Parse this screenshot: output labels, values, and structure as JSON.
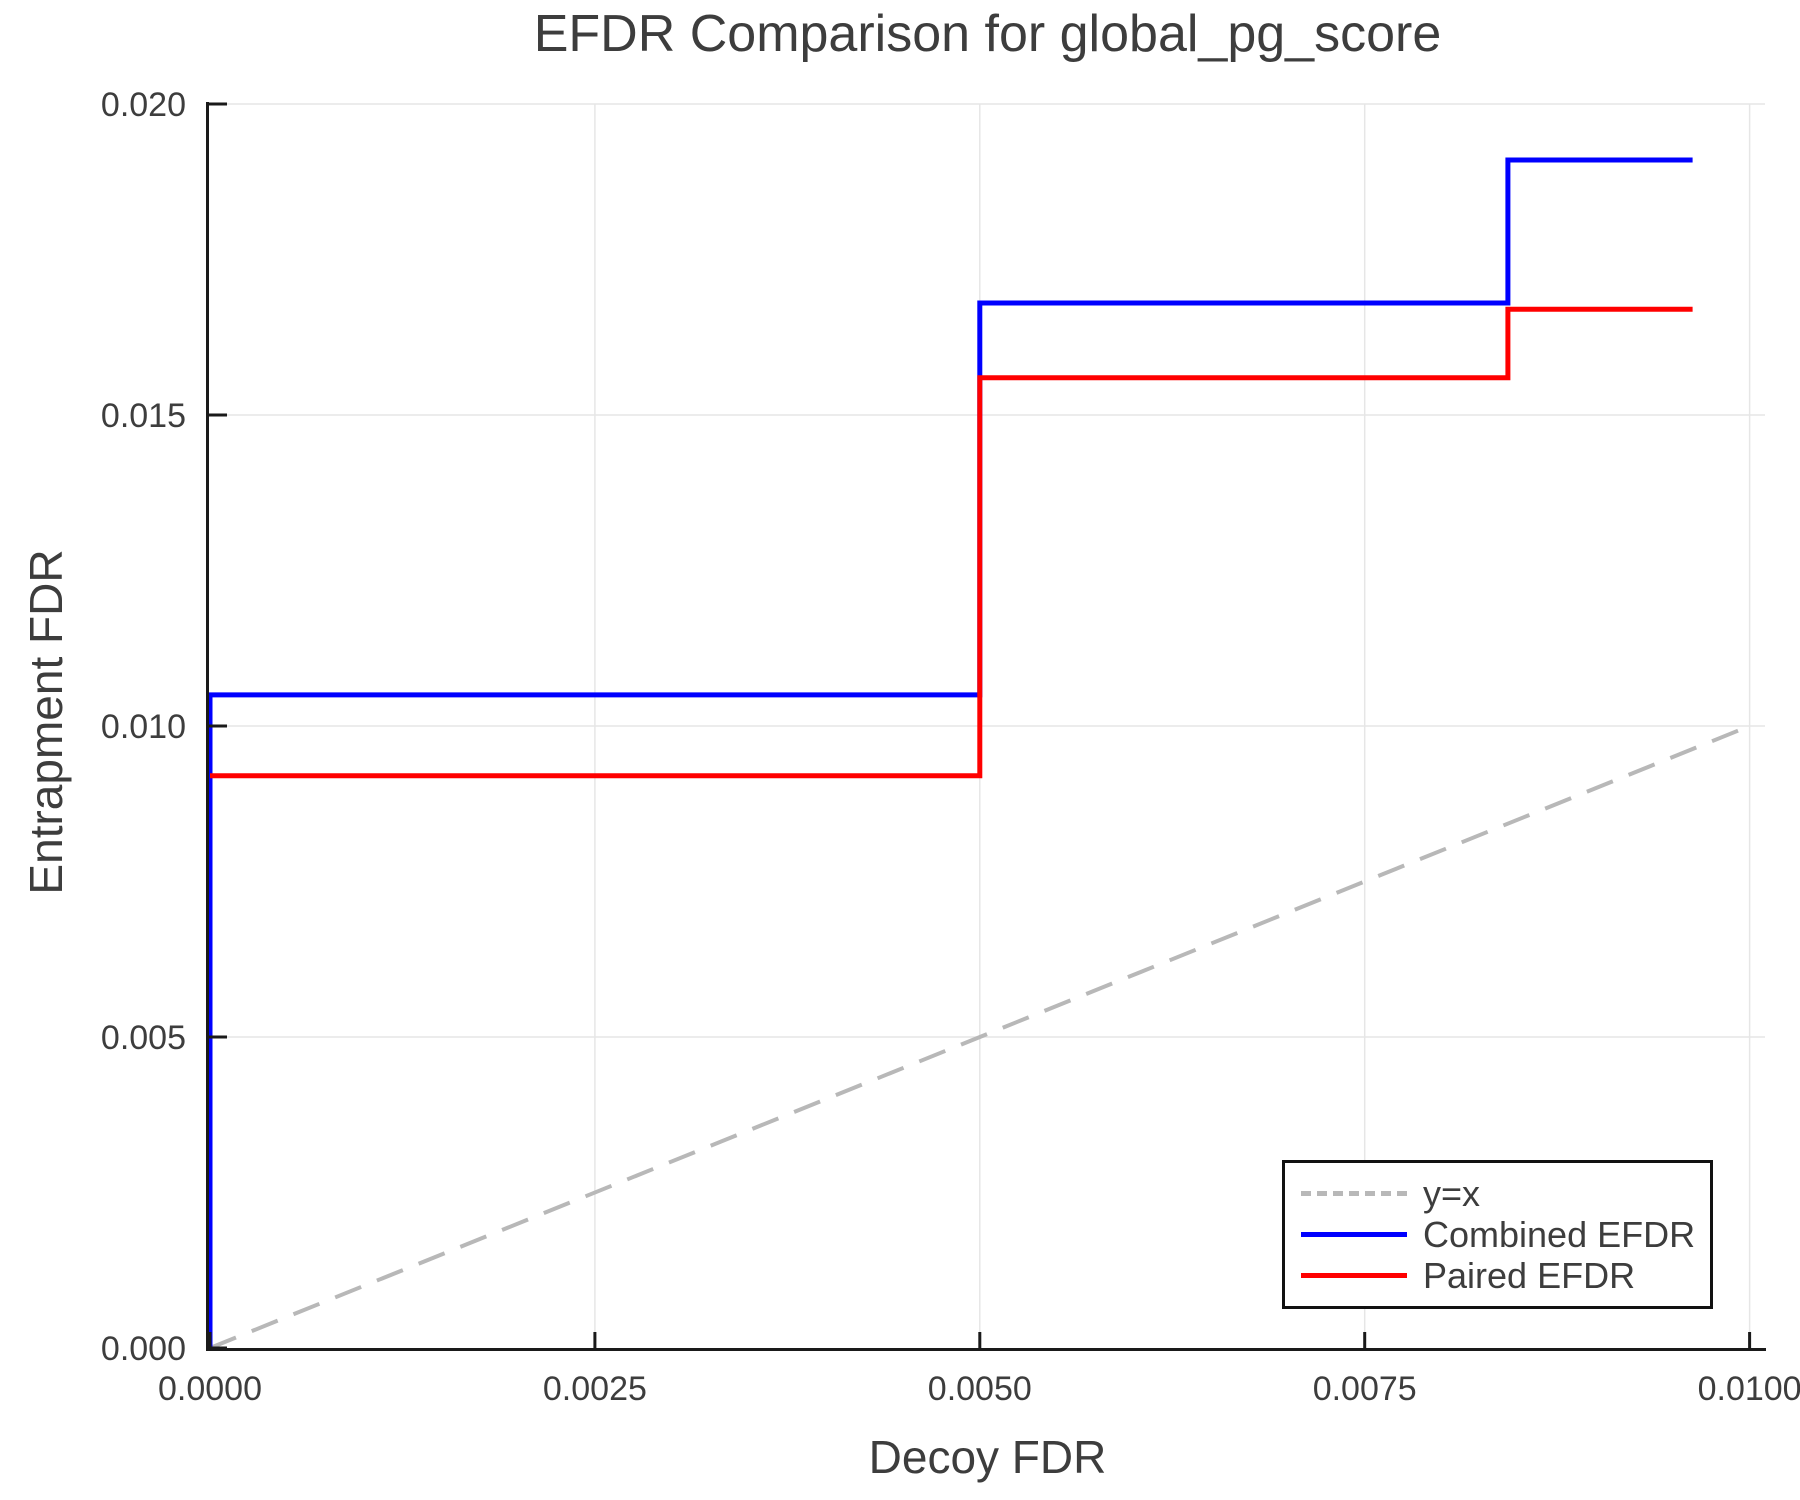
{
  "chart_data": {
    "type": "line",
    "title": "EFDR Comparison for global_pg_score",
    "xlabel": "Decoy FDR",
    "ylabel": "Entrapment FDR",
    "xlim": [
      0,
      0.0101
    ],
    "ylim": [
      0,
      0.02
    ],
    "grid": true,
    "legend_position": "lower right",
    "xticks": {
      "values": [
        0,
        0.0025,
        0.005,
        0.0075,
        0.01
      ],
      "labels": [
        "0.0000",
        "0.0025",
        "0.0050",
        "0.0075",
        "0.0100"
      ]
    },
    "yticks": {
      "values": [
        0,
        0.005,
        0.01,
        0.015,
        0.02
      ],
      "labels": [
        "0.000",
        "0.005",
        "0.010",
        "0.015",
        "0.020"
      ]
    },
    "series": [
      {
        "name": "y=x",
        "slug": "y-equals-x",
        "line_type": "diagonal-reference",
        "style": "dashed",
        "color": "#b8b8b8",
        "points": [
          [
            0,
            0
          ],
          [
            0.01,
            0.01
          ]
        ]
      },
      {
        "name": "Combined EFDR",
        "slug": "combined-efdr",
        "line_type": "step",
        "style": "solid",
        "color": "#0000ff",
        "points": [
          [
            0,
            0
          ],
          [
            0,
            0.0105
          ],
          [
            0.005,
            0.0105
          ],
          [
            0.005,
            0.0168
          ],
          [
            0.00843,
            0.0168
          ],
          [
            0.00843,
            0.0191
          ],
          [
            0.00963,
            0.0191
          ]
        ]
      },
      {
        "name": "Paired EFDR",
        "slug": "paired-efdr",
        "line_type": "step",
        "style": "solid",
        "color": "#ff0000",
        "points": [
          [
            0,
            0.0092
          ],
          [
            0.005,
            0.0092
          ],
          [
            0.005,
            0.0156
          ],
          [
            0.00843,
            0.0156
          ],
          [
            0.00843,
            0.0167
          ],
          [
            0.00963,
            0.0167
          ]
        ]
      }
    ],
    "colors": {
      "grid": "#e6e6e6",
      "spine": "#1a1a1a",
      "text": "#3d3d3d",
      "background": "#ffffff"
    }
  }
}
